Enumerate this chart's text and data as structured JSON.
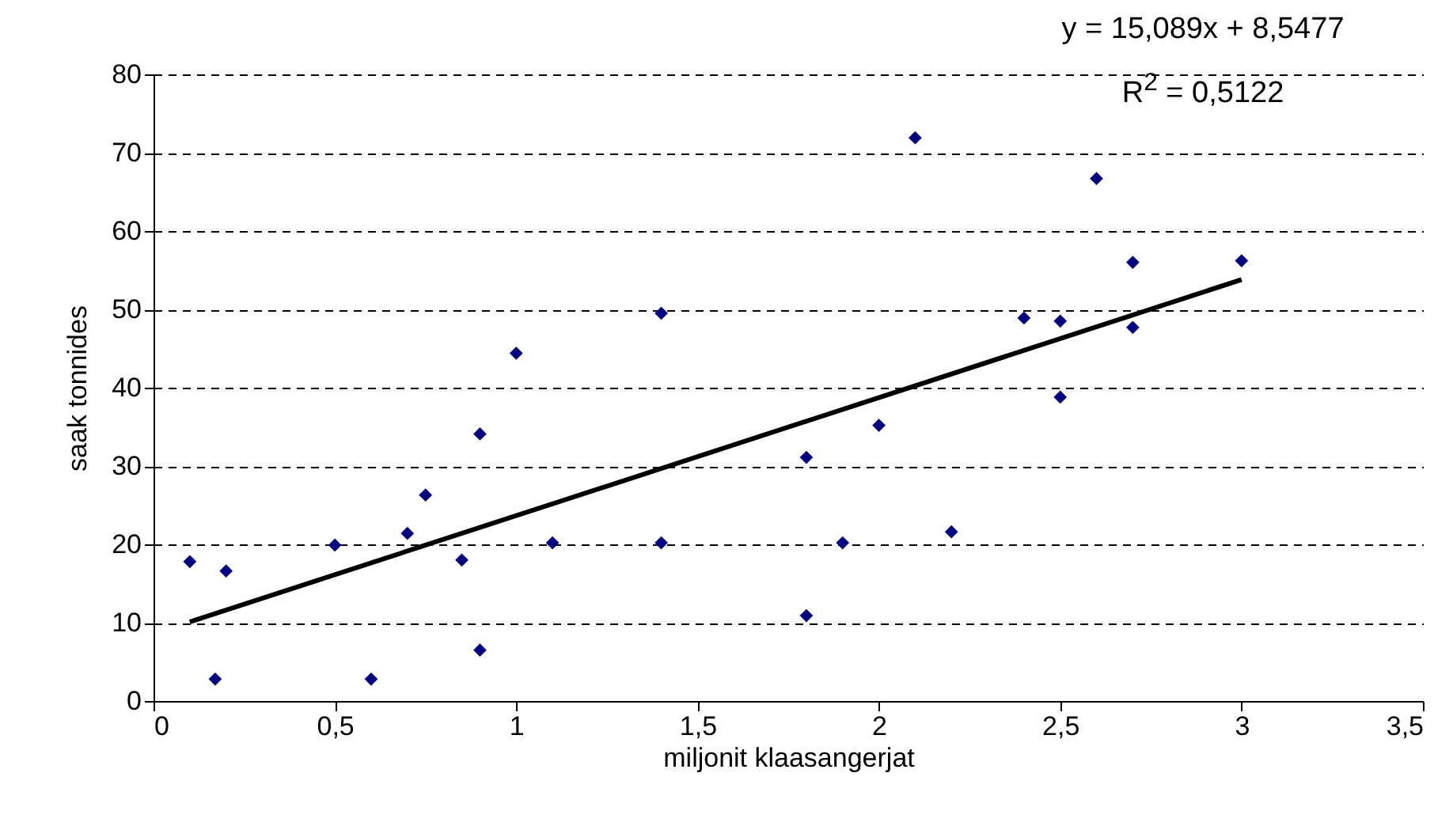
{
  "chart_data": {
    "type": "scatter",
    "xlabel": "miljonit klaasangerjat",
    "ylabel": "saak tonnides",
    "annotations": [
      "y = 15,089x + 8,5477",
      "R$^{2}$ = 0,5122"
    ],
    "series": [
      {
        "type": "scatter",
        "color": "#000080",
        "marker": "diamond",
        "x": [
          0.1,
          0.2,
          0.17,
          0.5,
          0.6,
          0.7,
          0.75,
          0.85,
          0.9,
          0.9,
          1.0,
          1.1,
          1.4,
          1.4,
          1.8,
          1.8,
          1.9,
          2.0,
          2.1,
          2.2,
          2.4,
          2.5,
          2.5,
          2.6,
          2.7,
          2.7,
          3.0
        ],
        "values": [
          17.8,
          16.6,
          2.8,
          19.9,
          2.8,
          21.4,
          26.3,
          18,
          6.5,
          34.1,
          44.4,
          20.2,
          49.5,
          20.2,
          31.1,
          10.9,
          20.2,
          35.2,
          71.9,
          21.6,
          48.9,
          48.5,
          38.8,
          66.7,
          56,
          47.7,
          56.2
        ]
      },
      {
        "type": "line",
        "color": "#000000",
        "x": [
          0.1,
          3.0
        ],
        "values": [
          10.1,
          53.8
        ]
      }
    ],
    "xlim": [
      0,
      3.5
    ],
    "xticks": [
      0,
      {
        "value": 0.5,
        "label": "0,5"
      },
      1,
      {
        "value": 1.5,
        "label": "1,5"
      },
      2,
      {
        "value": 2.5,
        "label": "2,5"
      },
      3,
      {
        "value": 3.5,
        "label": "3,5"
      }
    ],
    "ylim": [
      0,
      80
    ],
    "yticks": [
      0,
      10,
      20,
      30,
      40,
      50,
      60,
      70,
      80
    ],
    "grid": "y"
  }
}
